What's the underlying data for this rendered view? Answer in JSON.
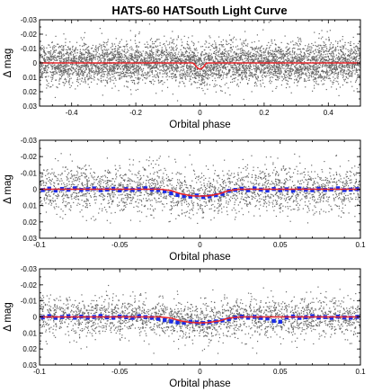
{
  "page": {
    "title": "HATS-60 HATSouth Light Curve"
  },
  "chart_data": [
    {
      "type": "scatter",
      "panel": "full-phase",
      "xlabel": "Orbital phase",
      "ylabel": "Δ mag",
      "xlim": [
        -0.5,
        0.5
      ],
      "ylim": [
        -0.03,
        0.03
      ],
      "y_inverted": true,
      "grid": false,
      "xticks": [
        -0.4,
        -0.2,
        0,
        0.2,
        0.4
      ],
      "xtick_labels": [
        "-0.4",
        "-0.2",
        "0",
        "0.2",
        "0.4"
      ],
      "yticks": [
        -0.03,
        -0.02,
        -0.01,
        0,
        0.01,
        0.02,
        0.03
      ],
      "ytick_labels": [
        "-0.03",
        "-0.02",
        "-0.01",
        "0",
        "0.01",
        "0.02",
        "0.03"
      ],
      "series": [
        {
          "kind": "points",
          "color": "#666666",
          "scatter_sigma": 0.007
        },
        {
          "kind": "model",
          "color": "#e8262a",
          "x": [
            -0.5,
            -0.04,
            -0.025,
            -0.018,
            -0.012,
            -0.005,
            0.0,
            0.005,
            0.012,
            0.018,
            0.025,
            0.04,
            0.5
          ],
          "y": [
            0,
            0,
            0,
            0.0005,
            0.0025,
            0.004,
            0.0042,
            0.004,
            0.0025,
            0.0005,
            0,
            0,
            0
          ]
        }
      ]
    },
    {
      "type": "scatter",
      "panel": "zoom-transit-1",
      "xlabel": "Orbital phase",
      "ylabel": "Δ mag",
      "xlim": [
        -0.1,
        0.1
      ],
      "ylim": [
        -0.03,
        0.03
      ],
      "y_inverted": true,
      "grid": false,
      "xticks": [
        -0.1,
        -0.05,
        0,
        0.05,
        0.1
      ],
      "xtick_labels": [
        "-0.1",
        "-0.05",
        "0",
        "0.05",
        "0.1"
      ],
      "yticks": [
        -0.03,
        -0.02,
        -0.01,
        0,
        0.01,
        0.02,
        0.03
      ],
      "ytick_labels": [
        "-0.03",
        "-0.02",
        "-0.01",
        "0",
        "0.01",
        "0.02",
        "0.03"
      ],
      "series": [
        {
          "kind": "points",
          "color": "#666666",
          "scatter_sigma": 0.007
        },
        {
          "kind": "binned",
          "color": "#1a2ee6",
          "x": [
            -0.098,
            -0.094,
            -0.09,
            -0.086,
            -0.082,
            -0.078,
            -0.074,
            -0.07,
            -0.066,
            -0.062,
            -0.058,
            -0.054,
            -0.05,
            -0.046,
            -0.042,
            -0.038,
            -0.034,
            -0.03,
            -0.026,
            -0.022,
            -0.018,
            -0.014,
            -0.01,
            -0.006,
            -0.002,
            0.002,
            0.006,
            0.01,
            0.014,
            0.018,
            0.022,
            0.026,
            0.03,
            0.034,
            0.038,
            0.042,
            0.046,
            0.05,
            0.054,
            0.058,
            0.062,
            0.066,
            0.07,
            0.074,
            0.078,
            0.082,
            0.086,
            0.09,
            0.094,
            0.098
          ],
          "y": [
            0.0005,
            -0.0004,
            0.0008,
            -0.0002,
            0.0003,
            -0.0006,
            0.0004,
            0.0,
            -0.0005,
            0.0006,
            0.0002,
            -0.0003,
            0.0007,
            -0.0001,
            0.0004,
            0.0,
            -0.0006,
            0.0003,
            0.0005,
            0.0012,
            0.0025,
            0.0035,
            0.0042,
            0.0045,
            0.0038,
            0.0048,
            0.0044,
            0.0036,
            0.0028,
            0.001,
            0.0004,
            -0.0003,
            0.0006,
            -0.0005,
            0.0002,
            0.0008,
            -0.0002,
            0.0005,
            0.0,
            0.0009,
            -0.0004,
            0.0003,
            0.0006,
            -0.0003,
            0.0004,
            0.0001,
            -0.0006,
            0.0005,
            0.0002,
            -0.0001
          ]
        },
        {
          "kind": "model",
          "color": "#e8262a",
          "x": [
            -0.1,
            -0.025,
            -0.018,
            -0.012,
            -0.005,
            0.0,
            0.005,
            0.012,
            0.018,
            0.025,
            0.1
          ],
          "y": [
            0,
            0,
            0.0008,
            0.0028,
            0.004,
            0.0042,
            0.004,
            0.0028,
            0.0008,
            0,
            0
          ]
        }
      ]
    },
    {
      "type": "scatter",
      "panel": "zoom-transit-2",
      "xlabel": "Orbital phase",
      "ylabel": "Δ mag",
      "xlim": [
        -0.1,
        0.1
      ],
      "ylim": [
        -0.03,
        0.03
      ],
      "y_inverted": true,
      "grid": false,
      "xticks": [
        -0.1,
        -0.05,
        0,
        0.05,
        0.1
      ],
      "xtick_labels": [
        "-0.1",
        "-0.05",
        "0",
        "0.05",
        "0.1"
      ],
      "yticks": [
        -0.03,
        -0.02,
        -0.01,
        0,
        0.01,
        0.02,
        0.03
      ],
      "ytick_labels": [
        "-0.03",
        "-0.02",
        "-0.01",
        "0",
        "0.01",
        "0.02",
        "0.03"
      ],
      "series": [
        {
          "kind": "points",
          "color": "#666666",
          "scatter_sigma": 0.006
        },
        {
          "kind": "binned",
          "color": "#1a2ee6",
          "x": [
            -0.098,
            -0.094,
            -0.09,
            -0.086,
            -0.082,
            -0.078,
            -0.074,
            -0.07,
            -0.066,
            -0.062,
            -0.058,
            -0.054,
            -0.05,
            -0.046,
            -0.042,
            -0.038,
            -0.034,
            -0.03,
            -0.026,
            -0.022,
            -0.018,
            -0.014,
            -0.01,
            -0.006,
            -0.002,
            0.002,
            0.006,
            0.01,
            0.014,
            0.018,
            0.022,
            0.026,
            0.03,
            0.034,
            0.038,
            0.042,
            0.046,
            0.05,
            0.054,
            0.058,
            0.062,
            0.066,
            0.07,
            0.074,
            0.078,
            0.082,
            0.086,
            0.09,
            0.094,
            0.098
          ],
          "y": [
            0.0003,
            -0.0005,
            0.0006,
            0.0001,
            -0.0004,
            0.0005,
            -0.0002,
            0.0004,
            0.0,
            -0.0006,
            0.0003,
            0.0005,
            -0.0003,
            0.0002,
            0.0006,
            -0.0004,
            0.0001,
            0.0005,
            0.0012,
            0.002,
            0.0028,
            0.0034,
            0.0036,
            0.003,
            0.0034,
            0.0038,
            0.0032,
            0.0028,
            0.0022,
            0.0014,
            0.0004,
            -0.0002,
            0.0005,
            0.0,
            0.0006,
            0.001,
            0.0025,
            0.003,
            0.0004,
            -0.0003,
            0.0006,
            0.0002,
            -0.0005,
            0.0004,
            0.0001,
            0.0006,
            -0.0002,
            0.0003,
            0.0005,
            0.0
          ]
        },
        {
          "kind": "model",
          "color": "#e8262a",
          "x": [
            -0.1,
            -0.025,
            -0.018,
            -0.012,
            -0.005,
            0.0,
            0.005,
            0.012,
            0.018,
            0.025,
            0.1
          ],
          "y": [
            0,
            0,
            0.0007,
            0.0025,
            0.0035,
            0.0037,
            0.0035,
            0.0025,
            0.0007,
            0,
            0
          ]
        }
      ]
    }
  ]
}
